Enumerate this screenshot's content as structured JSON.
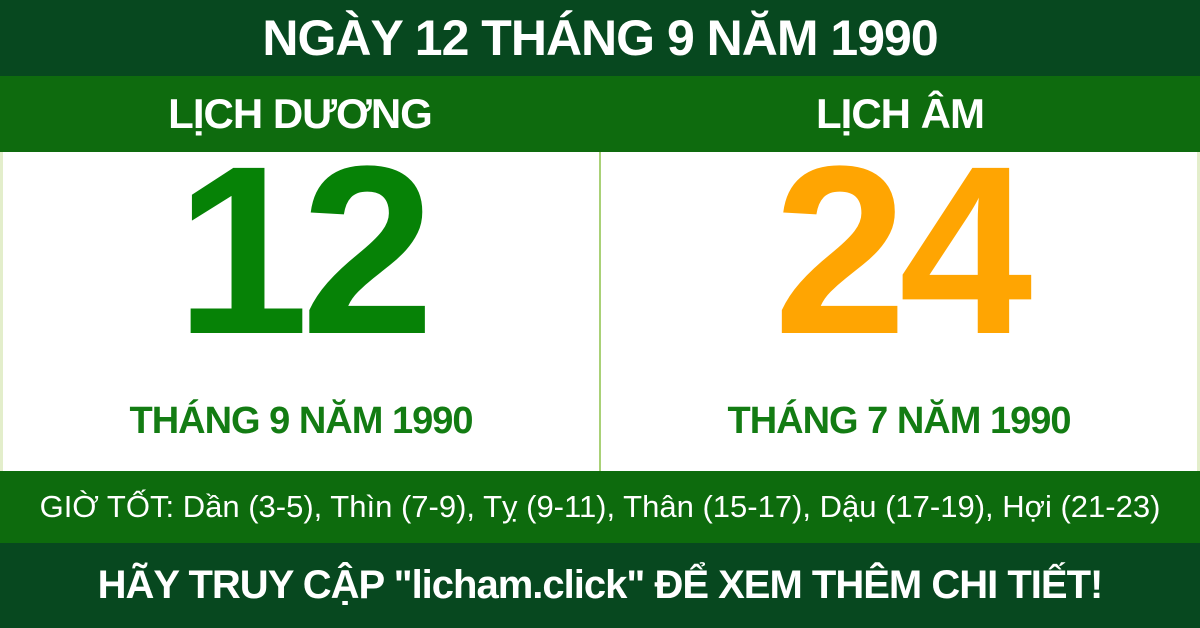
{
  "colors": {
    "header_bg": "#07481f",
    "subheader_bg": "#0e6b0e",
    "body_bg": "#ffffff",
    "body_border": "#e3eecb",
    "divider": "#a9d177",
    "solar_number": "#068206",
    "lunar_number": "#ffa502",
    "month_text": "#137c13",
    "good_hours_bg": "#0d6b0d",
    "footer_bg": "#07481f",
    "text_light": "#ffffff"
  },
  "header": {
    "title": "NGÀY 12 THÁNG 9 NĂM 1990"
  },
  "calendar": {
    "solar": {
      "label": "LỊCH DƯƠNG",
      "day": "12",
      "month_year": "THÁNG 9 NĂM 1990"
    },
    "lunar": {
      "label": "LỊCH ÂM",
      "day": "24",
      "month_year": "THÁNG 7 NĂM 1990"
    }
  },
  "good_hours": {
    "text": "GIỜ TỐT: Dần (3-5), Thìn (7-9), Tỵ (9-11), Thân (15-17), Dậu (17-19), Hợi (21-23)"
  },
  "footer": {
    "text": "HÃY TRUY CẬP \"licham.click\" ĐỂ XEM THÊM CHI TIẾT!"
  }
}
